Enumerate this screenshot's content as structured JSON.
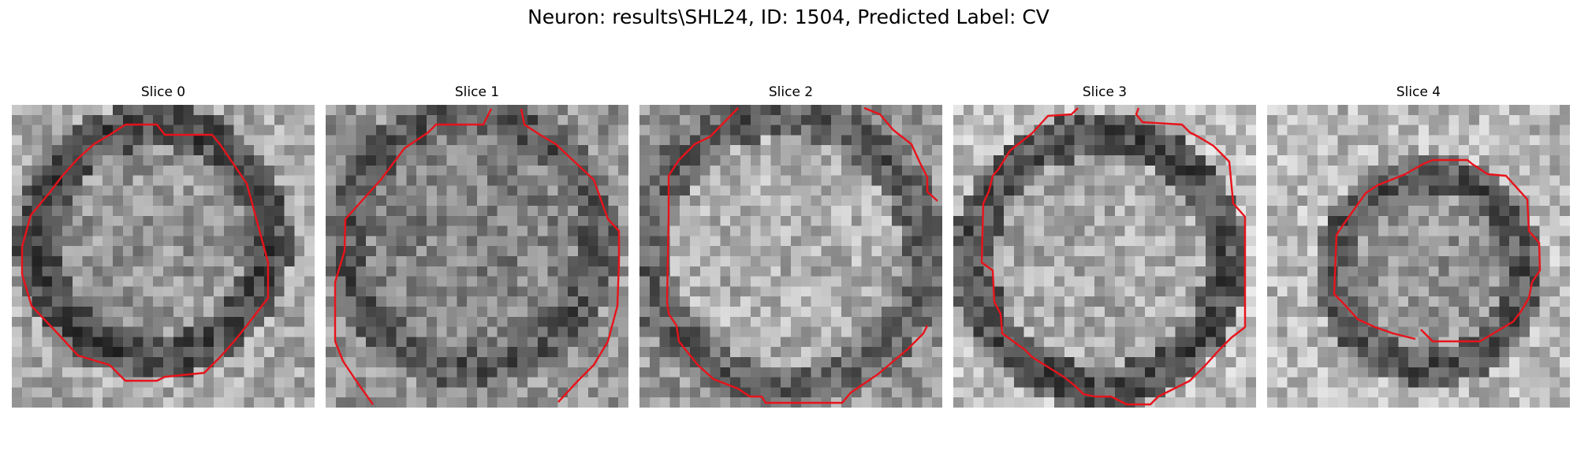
{
  "figure": {
    "title": "Neuron: results\\SHL24, ID: 1504, Predicted Label: CV",
    "contour_color": "#e8131b",
    "colormap": "gray",
    "panels": [
      {
        "title": "Slice 0"
      },
      {
        "title": "Slice 1"
      },
      {
        "title": "Slice 2"
      },
      {
        "title": "Slice 3"
      },
      {
        "title": "Slice 4"
      }
    ]
  }
}
